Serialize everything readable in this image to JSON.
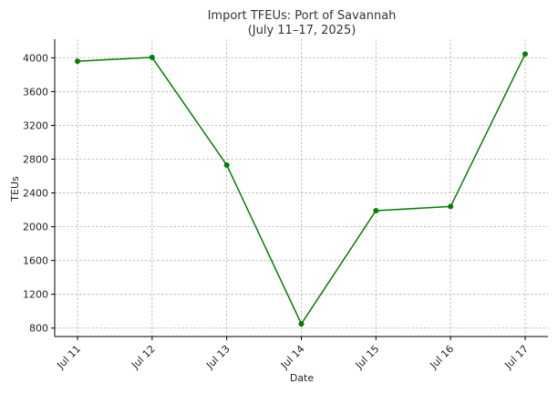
{
  "chart_data": {
    "type": "line",
    "title_line1": "Import TFEUs: Port of Savannah",
    "title_line2": "(July 11–17, 2025)",
    "xlabel": "Date",
    "ylabel": "TEUs",
    "categories": [
      "Jul 11",
      "Jul 12",
      "Jul 13",
      "Jul 14",
      "Jul 15",
      "Jul 16",
      "Jul 17"
    ],
    "series": [
      {
        "values": [
          3960,
          4005,
          2730,
          850,
          2190,
          2240,
          4045
        ],
        "color": "#008000"
      }
    ],
    "yticks": [
      800,
      1200,
      1600,
      2000,
      2400,
      2800,
      3200,
      3600,
      4000
    ],
    "ylim": [
      700,
      4220
    ],
    "grid": true
  }
}
